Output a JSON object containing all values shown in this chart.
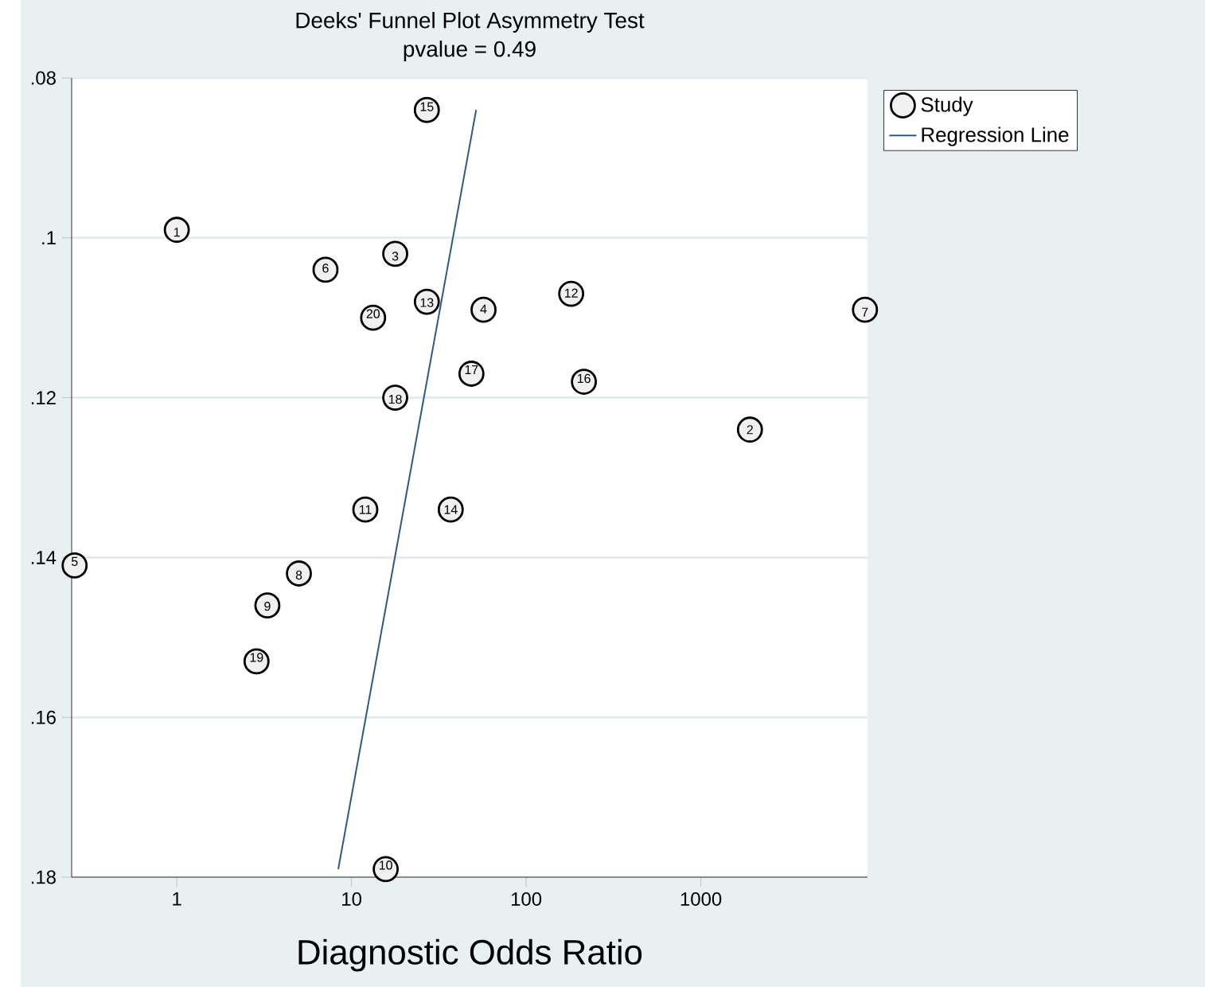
{
  "chart_data": {
    "type": "scatter",
    "title": "Deeks' Funnel Plot Asymmetry Test",
    "subtitle": "pvalue =   0.49",
    "xlabel": "Diagnostic Odds Ratio",
    "log": "x",
    "xlim": [
      0.25,
      9000
    ],
    "ylim": [
      0.18,
      0.08
    ],
    "xticks": [
      1,
      10,
      100,
      1000
    ],
    "yticks": [
      {
        "value": 0.08,
        "label": ".08"
      },
      {
        "value": 0.1,
        "label": ".1"
      },
      {
        "value": 0.12,
        "label": ".12"
      },
      {
        "value": 0.14,
        "label": ".14"
      },
      {
        "value": 0.16,
        "label": ".16"
      },
      {
        "value": 0.18,
        "label": ".18"
      }
    ],
    "grid": "y",
    "legend": "top right",
    "series": [
      {
        "name": "Study",
        "type": "scatter",
        "marker": "circle",
        "color": "#000000",
        "x": [
          1.0,
          1910,
          17.8,
          57,
          0.26,
          7.1,
          8700,
          5.0,
          3.3,
          15.7,
          12,
          181,
          27,
          37,
          27,
          214,
          48.6,
          17.8,
          2.86,
          13.3
        ],
        "values": [
          0.099,
          0.124,
          0.102,
          0.109,
          0.141,
          0.104,
          0.109,
          0.142,
          0.146,
          0.179,
          0.134,
          0.107,
          0.108,
          0.134,
          0.084,
          0.118,
          0.117,
          0.12,
          0.153,
          0.11
        ]
      },
      {
        "name": "Regression Line",
        "type": "line",
        "marker": "none",
        "line_style": "solid",
        "color": "#2b5a8a",
        "x": [
          51.7,
          8.4
        ],
        "values": [
          0.084,
          0.179
        ]
      }
    ],
    "annotations": [
      {
        "text": "1",
        "x": 1.0,
        "y": 0.0993
      },
      {
        "text": "2",
        "x": 1910,
        "y": 0.124
      },
      {
        "text": "3",
        "x": 17.8,
        "y": 0.1023
      },
      {
        "text": "4",
        "x": 57,
        "y": 0.1089
      },
      {
        "text": "5",
        "x": 0.26,
        "y": 0.1405
      },
      {
        "text": "6",
        "x": 7.1,
        "y": 0.1038
      },
      {
        "text": "7",
        "x": 8700,
        "y": 0.1093
      },
      {
        "text": "8",
        "x": 5.0,
        "y": 0.1422
      },
      {
        "text": "9",
        "x": 3.3,
        "y": 0.1461
      },
      {
        "text": "10",
        "x": 15.7,
        "y": 0.1785
      },
      {
        "text": "11",
        "x": 12,
        "y": 0.134
      },
      {
        "text": "12",
        "x": 181,
        "y": 0.1069
      },
      {
        "text": "13",
        "x": 27,
        "y": 0.1081
      },
      {
        "text": "14",
        "x": 37,
        "y": 0.134
      },
      {
        "text": "15",
        "x": 27,
        "y": 0.0836
      },
      {
        "text": "16",
        "x": 214,
        "y": 0.1176
      },
      {
        "text": "17",
        "x": 48.6,
        "y": 0.1165
      },
      {
        "text": "18",
        "x": 17.8,
        "y": 0.1202
      },
      {
        "text": "19",
        "x": 2.86,
        "y": 0.1525
      },
      {
        "text": "20",
        "x": 13.3,
        "y": 0.1095
      }
    ]
  }
}
